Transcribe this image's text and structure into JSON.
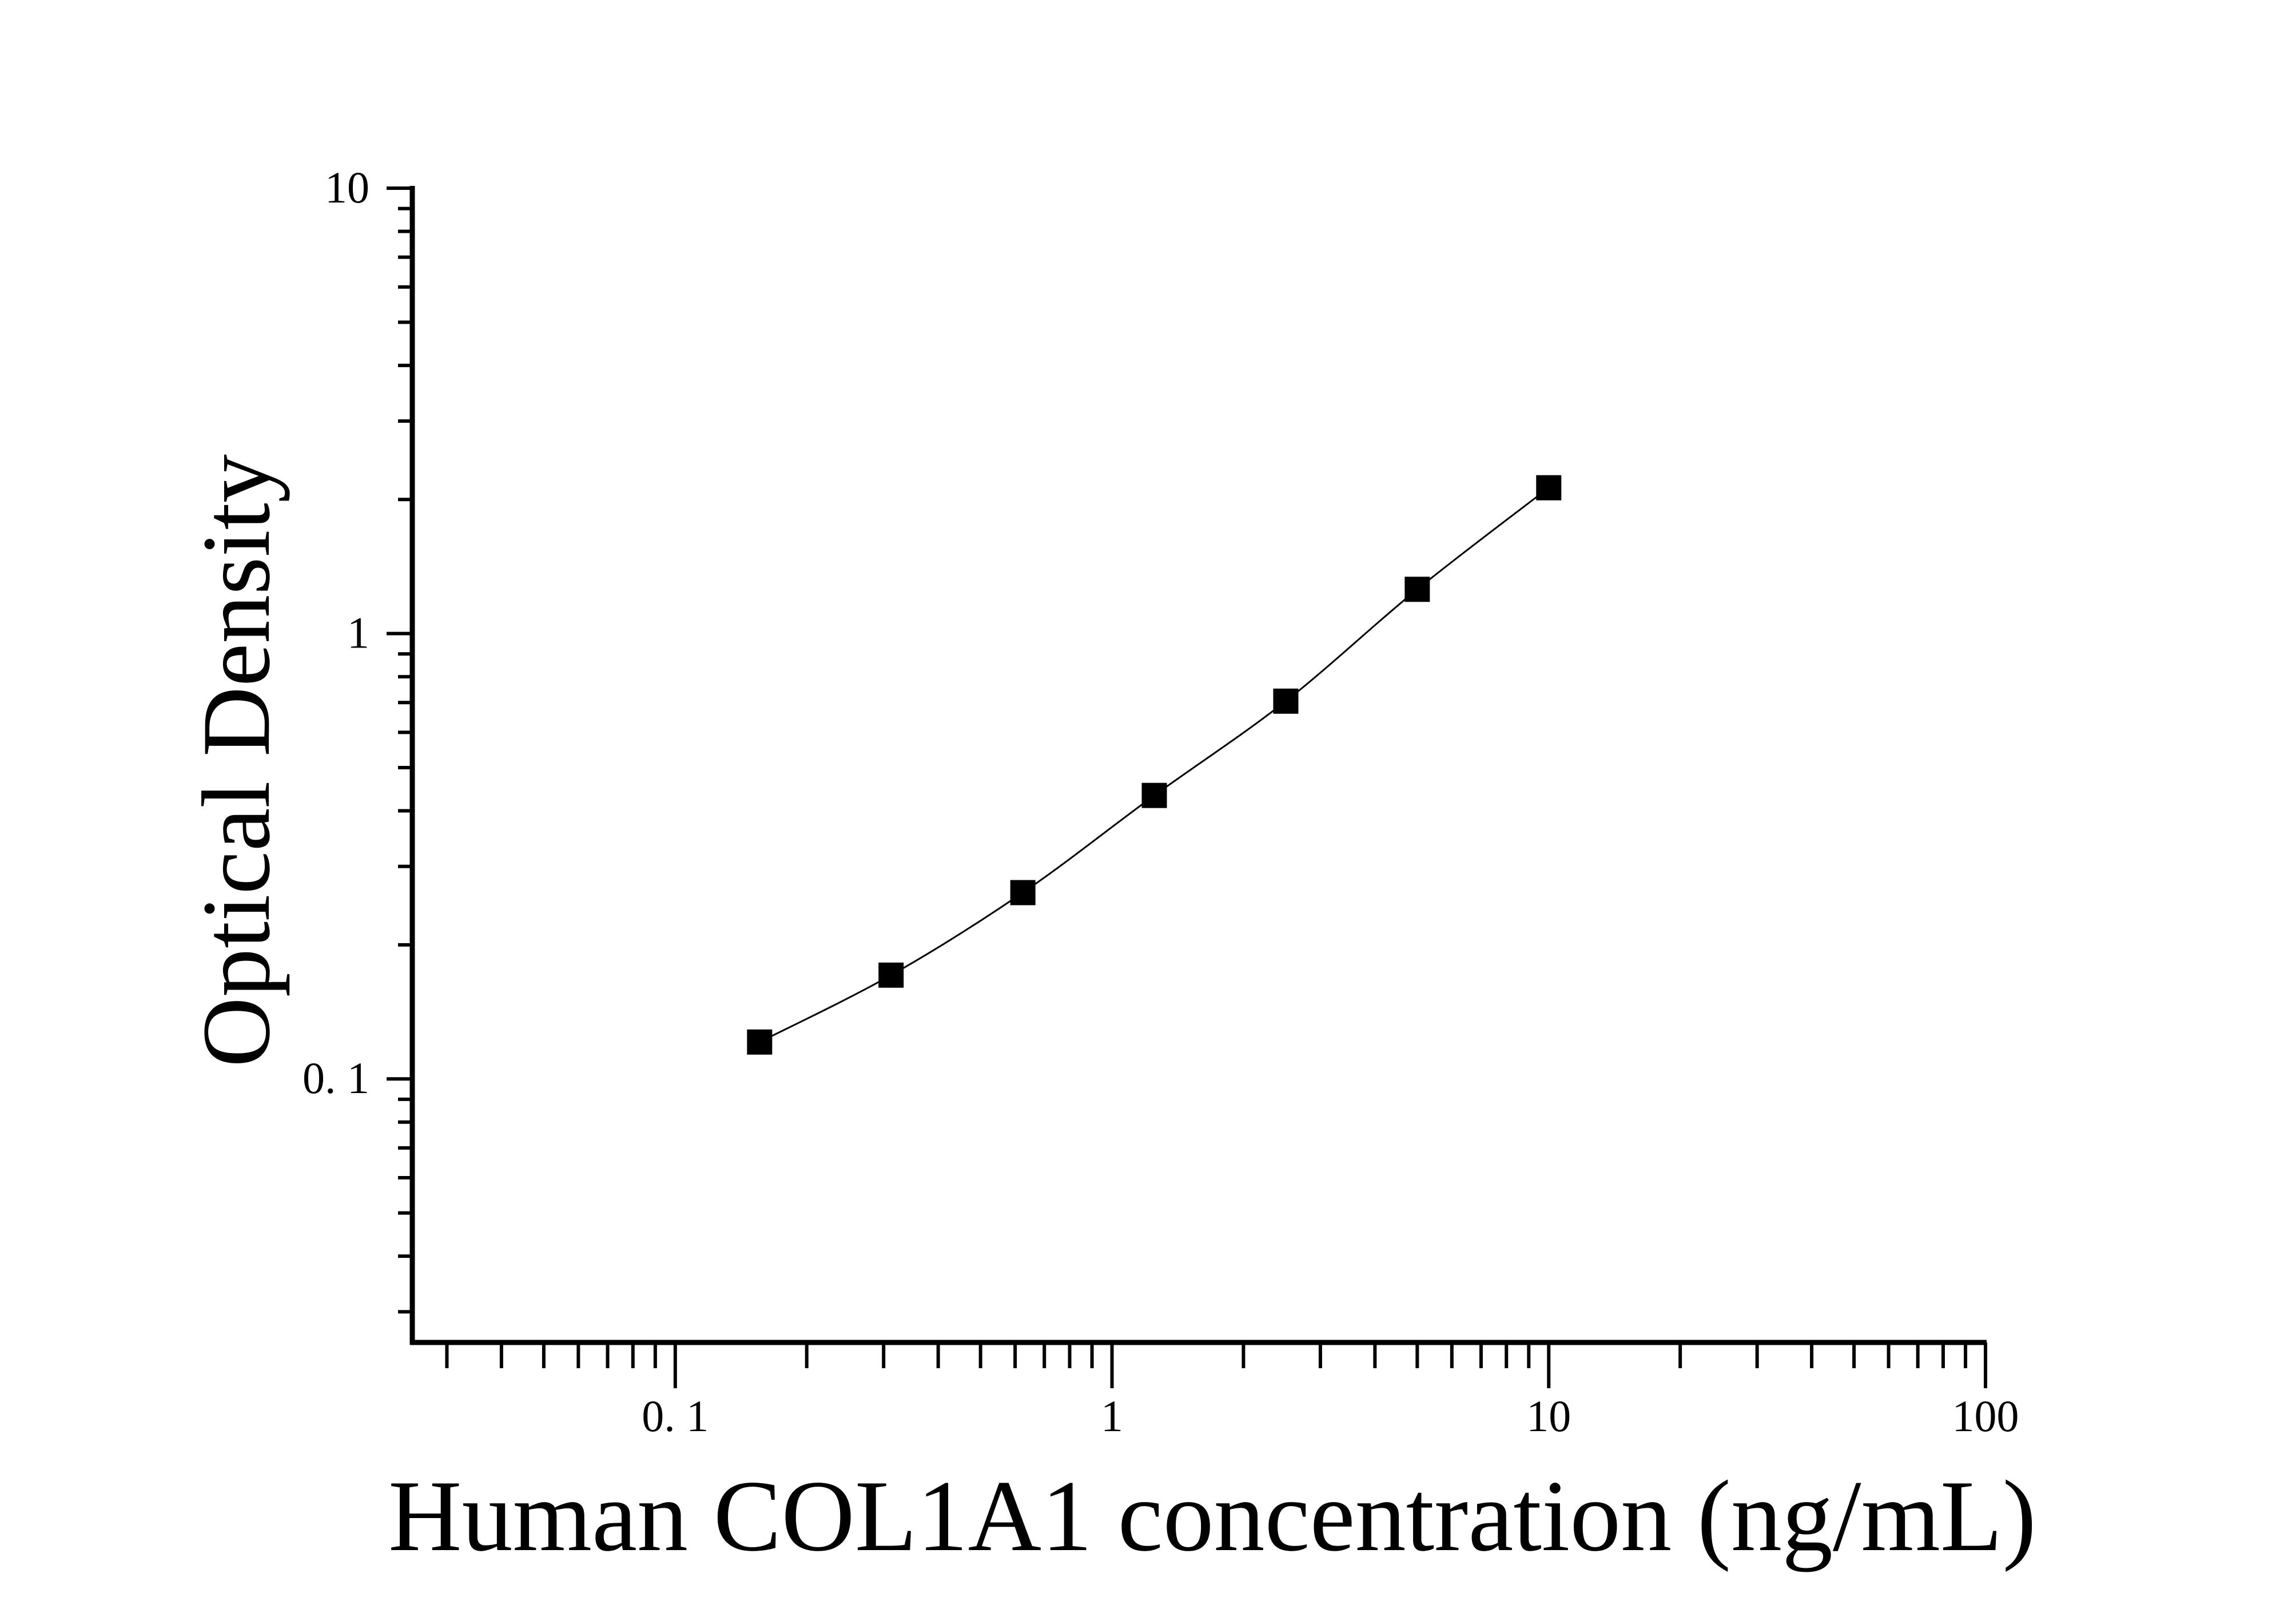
{
  "chart_data": {
    "type": "line",
    "title": "",
    "xlabel": "Human COL1A1 concentration (ng/mL)",
    "ylabel": "Optical Density",
    "xscale": "log",
    "yscale": "log",
    "xlim": [
      0.025,
      100
    ],
    "ylim": [
      0.0256,
      10
    ],
    "xticks": [
      {
        "value": 0.1,
        "label": "0. 1"
      },
      {
        "value": 1,
        "label": "1"
      },
      {
        "value": 10,
        "label": "10"
      },
      {
        "value": 100,
        "label": "100"
      }
    ],
    "yticks": [
      {
        "value": 0.1,
        "label": "0. 1"
      },
      {
        "value": 1,
        "label": "1"
      },
      {
        "value": 10,
        "label": "10"
      }
    ],
    "grid": false,
    "marker": "square",
    "color": "#000000",
    "series": [
      {
        "x": [
          0.156,
          0.312,
          0.625,
          1.25,
          2.5,
          5,
          10
        ],
        "y": [
          0.121,
          0.171,
          0.262,
          0.433,
          0.705,
          1.257,
          2.125
        ]
      }
    ]
  }
}
